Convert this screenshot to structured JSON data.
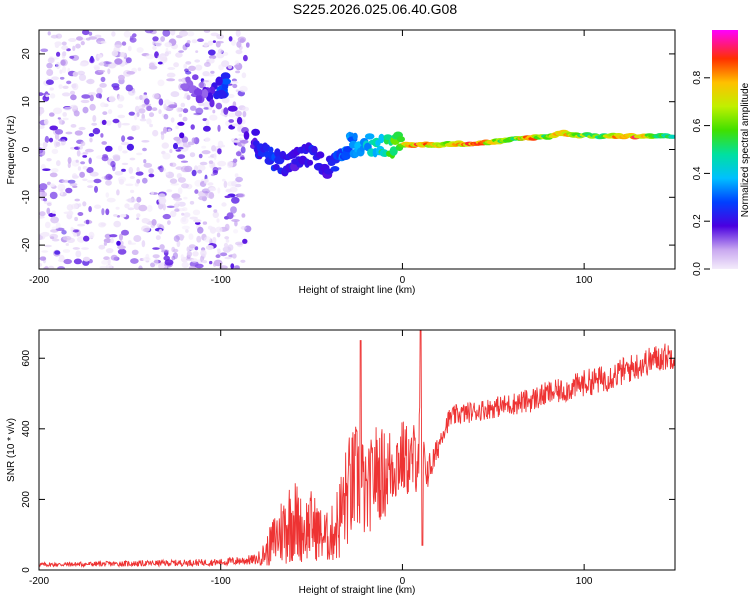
{
  "title": "S225.2026.025.06.40.G08",
  "chart_data": [
    {
      "type": "heatmap",
      "xlabel": "Height of straight line (km)",
      "ylabel": "Frequency (Hz)",
      "xlim": [
        -200,
        150
      ],
      "ylim": [
        -25,
        25
      ],
      "xticks": [
        -200,
        -100,
        0,
        100
      ],
      "yticks": [
        -20,
        -10,
        0,
        10,
        20
      ],
      "noise_region": {
        "x_from": -200,
        "x_to": -85,
        "y_from": -25,
        "y_to": 25
      },
      "ridge_points": [
        {
          "x": -100,
          "y": 13,
          "amp": 0.35
        },
        {
          "x": -97,
          "y": 13.5,
          "amp": 0.3
        },
        {
          "x": -110,
          "y": 12,
          "amp": 0.15
        },
        {
          "x": -120,
          "y": 15,
          "amp": 0.12
        },
        {
          "x": -82,
          "y": 3,
          "amp": 0.2
        },
        {
          "x": -78,
          "y": -1,
          "amp": 0.25
        },
        {
          "x": -70,
          "y": -2,
          "amp": 0.28
        },
        {
          "x": -64,
          "y": -3,
          "amp": 0.25
        },
        {
          "x": -58,
          "y": -2,
          "amp": 0.2
        },
        {
          "x": -50,
          "y": -1,
          "amp": 0.25
        },
        {
          "x": -42,
          "y": -4,
          "amp": 0.2
        },
        {
          "x": -35,
          "y": -3,
          "amp": 0.3
        },
        {
          "x": -30,
          "y": 1,
          "amp": 0.35
        },
        {
          "x": -25,
          "y": 1,
          "amp": 0.4
        },
        {
          "x": -15,
          "y": 1,
          "amp": 0.45
        },
        {
          "x": -8,
          "y": 1,
          "amp": 0.55
        },
        {
          "x": 0,
          "y": 1,
          "amp": 0.7
        },
        {
          "x": 10,
          "y": 1,
          "amp": 0.95
        },
        {
          "x": 20,
          "y": 1,
          "amp": 0.75
        },
        {
          "x": 30,
          "y": 1.2,
          "amp": 0.8
        },
        {
          "x": 40,
          "y": 1.3,
          "amp": 0.9
        },
        {
          "x": 50,
          "y": 1.6,
          "amp": 0.75
        },
        {
          "x": 60,
          "y": 2,
          "amp": 0.6
        },
        {
          "x": 70,
          "y": 2.5,
          "amp": 0.9
        },
        {
          "x": 80,
          "y": 2.7,
          "amp": 0.6
        },
        {
          "x": 88,
          "y": 3.5,
          "amp": 0.85
        },
        {
          "x": 96,
          "y": 3,
          "amp": 0.7
        },
        {
          "x": 110,
          "y": 2.8,
          "amp": 0.6
        },
        {
          "x": 120,
          "y": 2.8,
          "amp": 0.95
        },
        {
          "x": 130,
          "y": 2.8,
          "amp": 0.9
        },
        {
          "x": 140,
          "y": 2.8,
          "amp": 0.6
        },
        {
          "x": 150,
          "y": 2.8,
          "amp": 0.5
        }
      ],
      "colorbar": {
        "label": "Normalized spectral amplitude",
        "range": [
          0,
          1
        ],
        "ticks": [
          "0.0",
          "0.2",
          "0.4",
          "0.6",
          "0.8"
        ]
      }
    },
    {
      "type": "line",
      "xlabel": "Height of straight line (km)",
      "ylabel": "SNR (10 * v/v)",
      "xlim": [
        -200,
        150
      ],
      "ylim": [
        0,
        680
      ],
      "xticks": [
        -200,
        -100,
        0,
        100
      ],
      "yticks": [
        0,
        200,
        400,
        600
      ],
      "series": [
        {
          "name": "SNR",
          "color": "#ee3333",
          "envelope_x": [
            -200,
            -150,
            -100,
            -80,
            -75,
            -70,
            -65,
            -60,
            -55,
            -50,
            -45,
            -40,
            -35,
            -30,
            -25,
            -22,
            -20,
            -15,
            -10,
            -5,
            0,
            5,
            10,
            12,
            14,
            18,
            22,
            26,
            30,
            40,
            50,
            60,
            70,
            80,
            90,
            100,
            110,
            120,
            130,
            140,
            150
          ],
          "envelope_y": [
            15,
            18,
            22,
            30,
            50,
            90,
            120,
            150,
            110,
            130,
            100,
            90,
            140,
            220,
            260,
            240,
            200,
            280,
            270,
            300,
            320,
            300,
            360,
            300,
            280,
            320,
            390,
            430,
            440,
            450,
            460,
            470,
            480,
            500,
            510,
            530,
            540,
            560,
            580,
            600,
            610
          ],
          "amplitude": [
            6,
            8,
            10,
            15,
            40,
            80,
            110,
            130,
            90,
            100,
            80,
            70,
            120,
            160,
            160,
            150,
            120,
            140,
            130,
            120,
            110,
            100,
            130,
            60,
            50,
            40,
            30,
            30,
            30,
            30,
            30,
            32,
            35,
            35,
            35,
            38,
            40,
            40,
            40,
            40,
            40
          ]
        }
      ]
    }
  ]
}
